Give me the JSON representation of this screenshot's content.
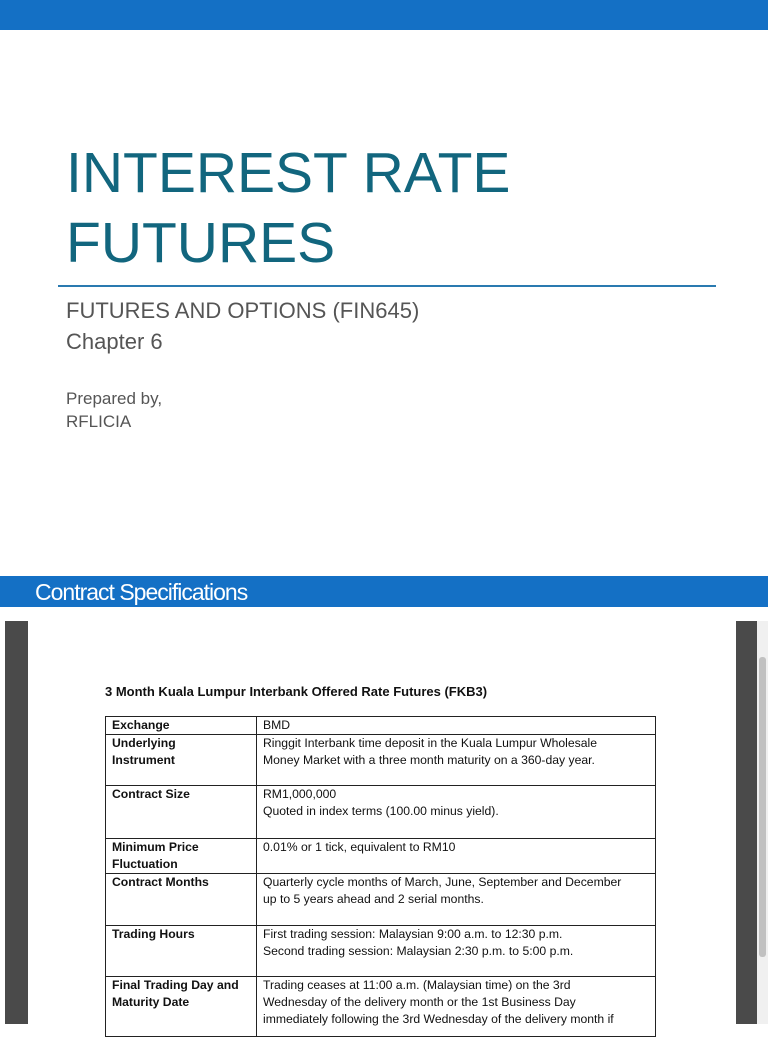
{
  "slide1": {
    "title_lines": [
      "INTEREST RATE",
      "FUTURES"
    ],
    "subtitle_lines": [
      "FUTURES AND OPTIONS (FIN645)",
      "Chapter 6"
    ],
    "author_lines": [
      "Prepared by,",
      "RFLICIA"
    ]
  },
  "slide2": {
    "header": "Contract Specifications",
    "document": {
      "title": "3 Month Kuala Lumpur Interbank Offered Rate Futures (FKB3)",
      "table": {
        "rows": [
          {
            "label": [
              "Exchange"
            ],
            "value": [
              "BMD"
            ]
          },
          {
            "label": [
              "Underlying",
              "Instrument"
            ],
            "value": [
              "Ringgit Interbank time deposit in the Kuala Lumpur Wholesale",
              "Money Market with a three month maturity on a 360-day year."
            ]
          },
          {
            "label": [
              "Contract Size"
            ],
            "value": [
              "RM1,000,000",
              "Quoted in index terms (100.00 minus yield)."
            ]
          },
          {
            "label": [
              "Minimum Price",
              "Fluctuation"
            ],
            "value": [
              "0.01% or 1 tick, equivalent to RM10"
            ]
          },
          {
            "label": [
              "Contract Months"
            ],
            "value": [
              "Quarterly cycle months of March, June, September and December",
              "up to 5 years ahead and 2 serial months."
            ]
          },
          {
            "label": [
              "Trading Hours"
            ],
            "value": [
              "First trading session: Malaysian 9:00 a.m. to 12:30 p.m.",
              "Second trading session: Malaysian 2:30 p.m. to 5:00 p.m."
            ]
          },
          {
            "label": [
              "Final Trading Day and",
              "Maturity Date"
            ],
            "value": [
              "Trading ceases at 11:00 a.m. (Malaysian time) on the 3rd",
              "Wednesday of the delivery month or the 1st Business Day",
              "immediately following the 3rd Wednesday of the delivery month if"
            ]
          }
        ]
      }
    }
  }
}
